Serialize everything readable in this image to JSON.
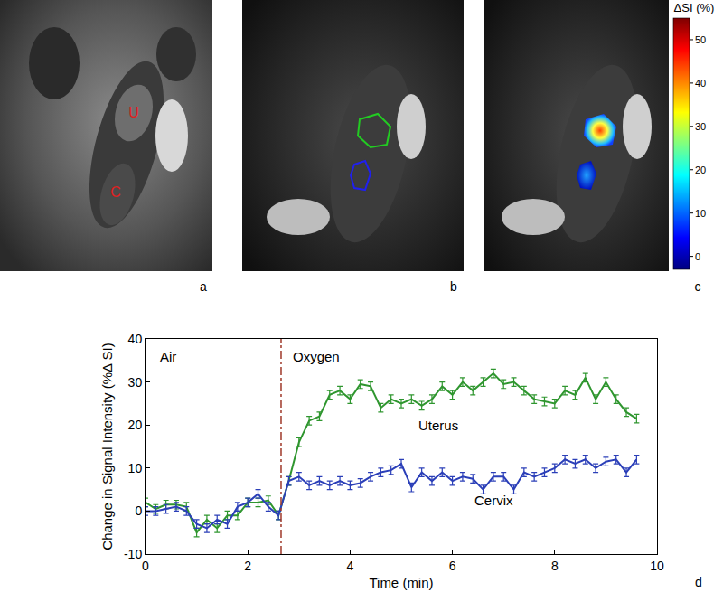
{
  "chart_data": {
    "type": "line",
    "x_label": "Time (min)",
    "y_label": "Change in Signal Intensity (%Δ SI)",
    "x": [
      0,
      0.2,
      0.4,
      0.6,
      0.8,
      1.0,
      1.2,
      1.4,
      1.6,
      1.8,
      2.0,
      2.2,
      2.4,
      2.6,
      2.8,
      3.0,
      3.2,
      3.4,
      3.6,
      3.8,
      4.0,
      4.2,
      4.4,
      4.6,
      4.8,
      5.0,
      5.2,
      5.4,
      5.6,
      5.8,
      6.0,
      6.2,
      6.4,
      6.6,
      6.8,
      7.0,
      7.2,
      7.4,
      7.6,
      7.8,
      8.0,
      8.2,
      8.4,
      8.6,
      8.8,
      9.0,
      9.2,
      9.4,
      9.6
    ],
    "series": [
      {
        "name": "Uterus",
        "color": "#2f962f",
        "values": [
          2,
          0.5,
          1.5,
          1.5,
          1,
          -5,
          -2,
          -4,
          -1,
          -1,
          2,
          2,
          2.5,
          -1,
          7,
          16,
          21,
          22,
          27,
          28,
          26,
          29.5,
          29,
          24,
          26,
          25,
          26,
          24.5,
          26,
          29,
          27,
          30,
          28,
          30,
          32,
          29.5,
          30,
          28,
          26,
          25.5,
          25,
          28,
          27,
          31,
          26,
          30,
          26,
          23,
          21.5
        ],
        "errors": [
          1,
          1,
          1,
          1,
          1,
          1,
          1,
          1,
          1,
          1,
          1,
          1,
          1,
          1,
          1,
          1,
          1,
          1,
          1,
          1,
          1,
          1,
          1,
          1,
          1,
          1,
          1,
          1,
          1,
          1,
          1,
          1,
          1,
          1,
          1,
          1,
          1,
          1,
          1,
          1,
          1,
          1,
          1,
          1,
          1,
          1,
          1,
          1,
          1
        ]
      },
      {
        "name": "Cervix",
        "color": "#2b3fb8",
        "values": [
          0,
          0,
          0.5,
          1,
          0,
          -3,
          -4,
          -2,
          -3,
          1,
          2,
          4,
          1,
          -1,
          7,
          8,
          6,
          7,
          6,
          7,
          6,
          6.5,
          8,
          9,
          9.5,
          11,
          5.5,
          9,
          7,
          9,
          7,
          8,
          7.5,
          5,
          8,
          8,
          5,
          9,
          8,
          9,
          10,
          12,
          11,
          12,
          10,
          11.5,
          12,
          9,
          12
        ],
        "errors": [
          1,
          1,
          1,
          1,
          1,
          1,
          1,
          1,
          1,
          1,
          1,
          1,
          1,
          1,
          1,
          1,
          1,
          1,
          1,
          1,
          1,
          1,
          1,
          1,
          1,
          1,
          1,
          1,
          1,
          1,
          1,
          1,
          1,
          1,
          1,
          1,
          1,
          1,
          1,
          1,
          1,
          1,
          1,
          1,
          1,
          1,
          1,
          1,
          1
        ]
      }
    ],
    "switch_time": 2.65,
    "annotations": [
      {
        "text": "Air",
        "x": 0.25,
        "y": 36
      },
      {
        "text": "Oxygen",
        "x": 2.85,
        "y": 36
      },
      {
        "text": "Uterus",
        "x": 5.3,
        "y": 20
      },
      {
        "text": "Cervix",
        "x": 6.4,
        "y": 2.5
      }
    ],
    "xlim": [
      0,
      10
    ],
    "xticks": [
      0,
      2,
      4,
      6,
      8,
      10
    ],
    "ylim": [
      -10,
      40
    ],
    "yticks": [
      -10,
      0,
      10,
      20,
      30,
      40
    ],
    "grid": false,
    "panel_label": "d"
  },
  "panels": [
    {
      "label": "a",
      "marks": [
        "U",
        "C"
      ]
    },
    {
      "label": "b"
    },
    {
      "label": "c"
    }
  ],
  "colorbar": {
    "title": "ΔSI (%)",
    "lim": [
      -3,
      55
    ],
    "ticks": [
      0,
      10,
      20,
      30,
      40,
      50
    ]
  }
}
